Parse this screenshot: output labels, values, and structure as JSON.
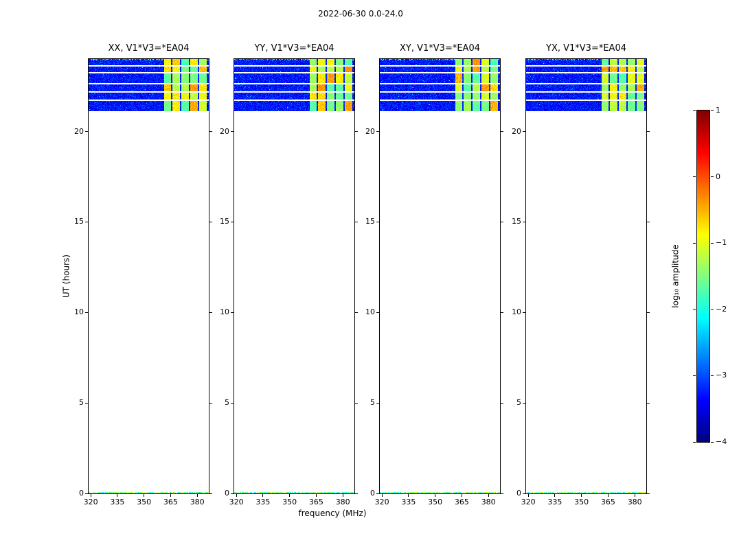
{
  "chart_data": {
    "type": "heatmap",
    "title": "2022-06-30 0.0-24.0",
    "xlabel": "frequency (MHz)",
    "ylabel": "UT (hours)",
    "x_range": [
      318.8,
      386.5
    ],
    "x_ticks": [
      320,
      335,
      350,
      365,
      380
    ],
    "y_range": [
      0,
      24
    ],
    "y_ticks": [
      0,
      5,
      10,
      15,
      20
    ],
    "panels": [
      {
        "id": "XX",
        "label": "XX, V1*V3=*EA04"
      },
      {
        "id": "YY",
        "label": "YY, V1*V3=*EA04"
      },
      {
        "id": "XY",
        "label": "XY, V1*V3=*EA04"
      },
      {
        "id": "YX",
        "label": "YX, V1*V3=*EA04"
      }
    ],
    "band": {
      "ut_start": 21.15,
      "ut_end": 24.0,
      "noise_log_amp": [
        -3.65,
        -2.95
      ],
      "speckle_log_amp": [
        -2.9,
        -1.9
      ],
      "gap_uts": [
        23.62,
        23.25,
        22.64,
        22.19,
        21.73
      ],
      "rfi_region": {
        "freq_start": 361.0,
        "freq_end": 385.0,
        "log_amp": [
          -1.8,
          -0.35
        ],
        "cell_freq_edges": [
          361.0,
          365.5,
          370.5,
          375.5,
          380.5,
          385.0
        ]
      }
    },
    "bottom_line": {
      "ut_range": [
        0.0,
        0.06
      ],
      "log_amp": [
        -2.3,
        -0.8
      ]
    },
    "colorbar": {
      "label": "log₁₀ amplitude",
      "colormap": "jet",
      "range": [
        -4,
        1
      ],
      "ticks": [
        1,
        0,
        -1,
        -2,
        -3,
        -4
      ],
      "tick_labels": [
        "1",
        "0",
        "−1",
        "−2",
        "−3",
        "−4"
      ]
    }
  }
}
